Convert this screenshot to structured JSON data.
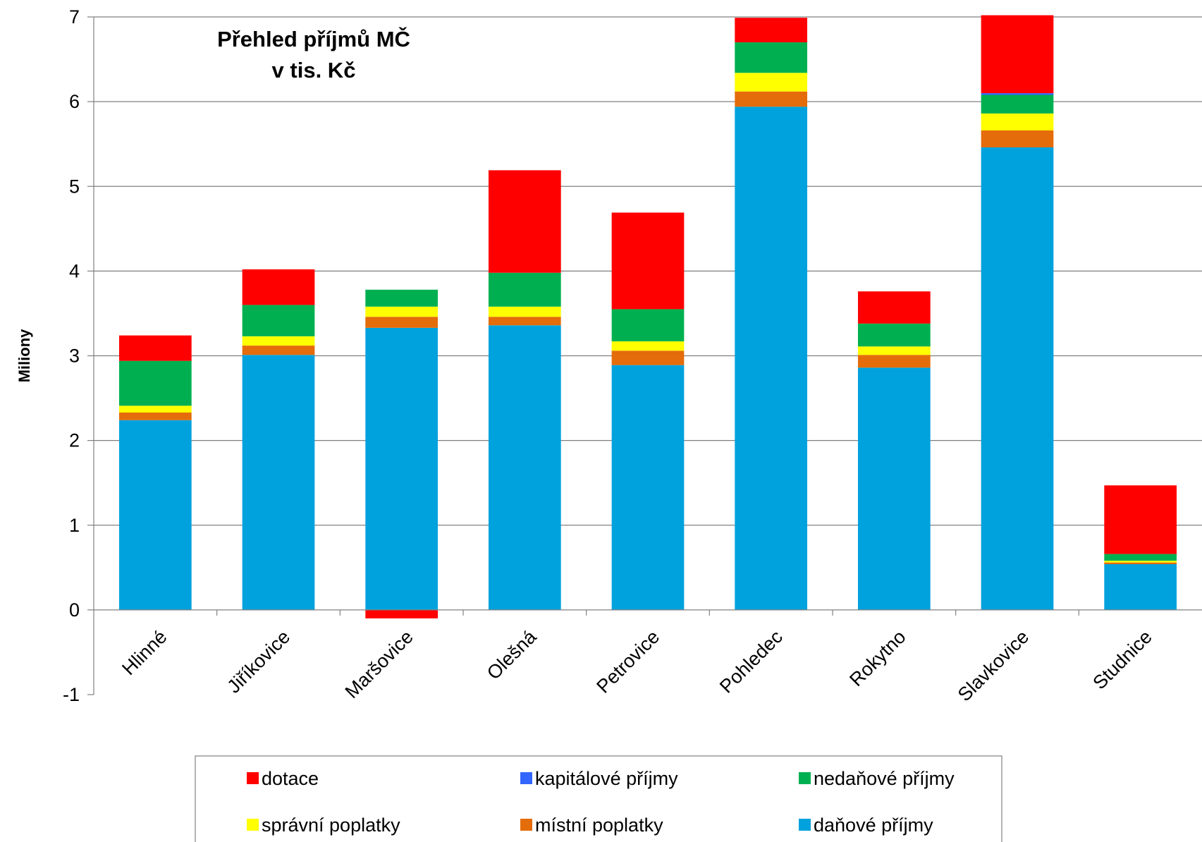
{
  "chart_data": {
    "type": "bar",
    "stacked": true,
    "title_lines": [
      "Přehled příjmů MČ",
      "v tis. Kč"
    ],
    "xlabel": "",
    "ylabel": "Miliony",
    "ylim": [
      -1,
      7
    ],
    "yticks": [
      "-1",
      "0",
      "1",
      "2",
      "3",
      "4",
      "5",
      "6",
      "7"
    ],
    "grid": true,
    "legend_position": "bottom",
    "categories": [
      "Hlinné",
      "Jiříkovice",
      "Maršovice",
      "Olešná",
      "Petrovice",
      "Pohledec",
      "Rokytno",
      "Slavkovice",
      "Studnice"
    ],
    "series": [
      {
        "name": "daňové příjmy",
        "color": "#00a2dd",
        "values": [
          2.24,
          3.01,
          3.33,
          3.36,
          2.89,
          5.94,
          2.86,
          5.46,
          0.54
        ]
      },
      {
        "name": "místní poplatky",
        "color": "#e46c0a",
        "values": [
          0.09,
          0.11,
          0.13,
          0.1,
          0.17,
          0.18,
          0.15,
          0.2,
          0.02
        ]
      },
      {
        "name": "správní poplatky",
        "color": "#ffff00",
        "values": [
          0.08,
          0.11,
          0.12,
          0.12,
          0.11,
          0.22,
          0.1,
          0.2,
          0.02
        ]
      },
      {
        "name": "nedaňové příjmy",
        "color": "#00b050",
        "values": [
          0.53,
          0.37,
          0.2,
          0.4,
          0.38,
          0.36,
          0.27,
          0.22,
          0.08
        ]
      },
      {
        "name": "kapitálové příjmy",
        "color": "#3366ff",
        "values": [
          0.0,
          0.0,
          0.0,
          0.0,
          0.0,
          0.0,
          0.0,
          0.02,
          0.0
        ]
      },
      {
        "name": "dotace",
        "color": "#ff0000",
        "values": [
          0.3,
          0.42,
          -0.1,
          1.21,
          1.14,
          0.29,
          0.38,
          0.92,
          0.81
        ]
      }
    ],
    "legend_order": [
      "dotace",
      "kapitálové příjmy",
      "nedaňové příjmy",
      "správní poplatky",
      "místní poplatky",
      "daňové příjmy"
    ]
  }
}
